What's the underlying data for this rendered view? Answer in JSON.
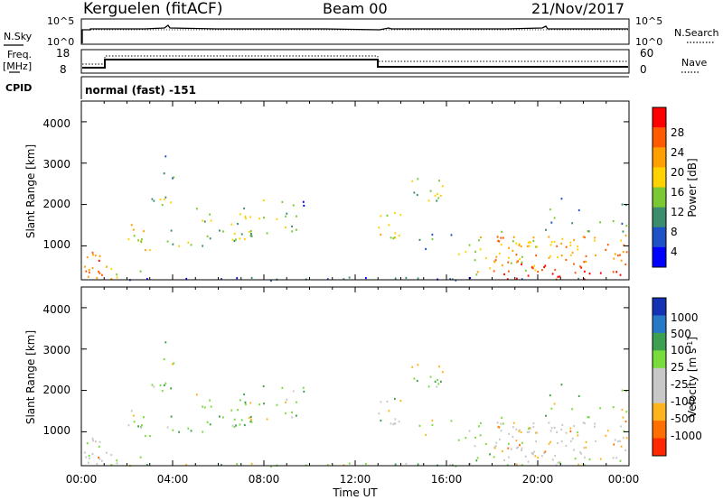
{
  "header": {
    "station": "Kerguelen (fitACF)",
    "beam": "Beam 00",
    "date": "21/Nov/2017"
  },
  "strip": {
    "nsky_label": "N.Sky",
    "nsky_ticks": [
      "10^5",
      "10^0"
    ],
    "nsearch_label": "N.Search",
    "nsearch_ticks": [
      "10^5",
      "10^0"
    ],
    "freq_label": "Freq.",
    "freq_unit": "[MHz]",
    "freq_ticks": [
      "18",
      "8"
    ],
    "nave_label": "Nave",
    "nave_ticks": [
      "60",
      "0"
    ],
    "cpid_label": "CPID",
    "cpid_text": "normal (fast) -151"
  },
  "chart_data": [
    {
      "type": "heatmap",
      "name": "power",
      "ylabel": "Slant Range [km]",
      "xlabel": "",
      "ylim": [
        180,
        4500
      ],
      "yticks": [
        "1000",
        "2000",
        "3000",
        "4000"
      ],
      "colorbar_label": "Power [dB]",
      "colorbar_ticks": [
        "28",
        "24",
        "20",
        "16",
        "12",
        "8",
        "4"
      ],
      "colorbar_colors": [
        "#ff0000",
        "#ff5a00",
        "#ffa000",
        "#ffd200",
        "#7ac832",
        "#3c8c6e",
        "#1e50c8",
        "#0000ff"
      ]
    },
    {
      "type": "heatmap",
      "name": "velocity",
      "ylabel": "Slant Range [km]",
      "xlabel": "Time UT",
      "ylim": [
        180,
        4500
      ],
      "yticks": [
        "1000",
        "2000",
        "3000",
        "4000"
      ],
      "xticks": [
        "00:00",
        "04:00",
        "08:00",
        "12:00",
        "16:00",
        "20:00",
        "00:00"
      ],
      "colorbar_label": "Velocity [m s",
      "colorbar_label_exp": "-1",
      "colorbar_label_end": "]",
      "colorbar_ticks": [
        "1000",
        "500",
        "100",
        "25",
        "-25",
        "-100",
        "-500",
        "-1000"
      ],
      "colorbar_colors": [
        "#1432b4",
        "#2878c8",
        "#3ca050",
        "#78dc3c",
        "#c8c8c8",
        "#c8c8c8",
        "#ffb41e",
        "#ff6e00",
        "#ff2800"
      ]
    }
  ]
}
